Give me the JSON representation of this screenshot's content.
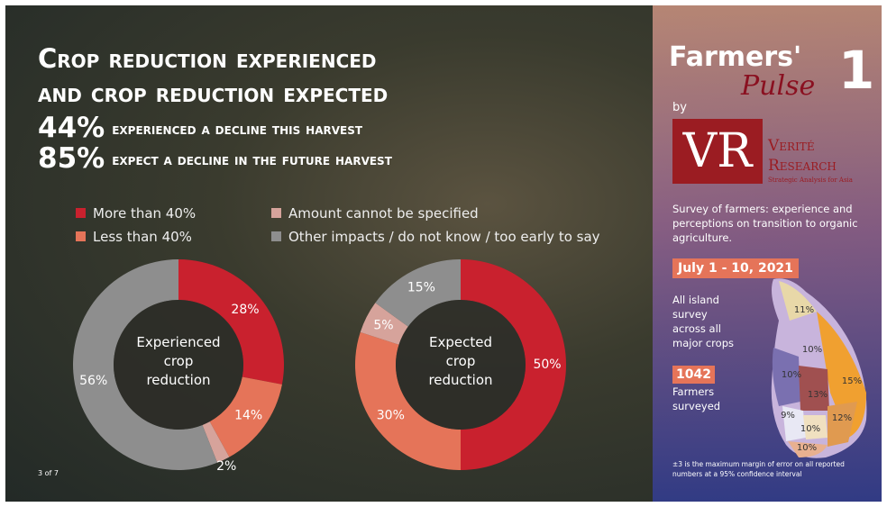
{
  "header": {
    "title_lines": [
      "Crop reduction experienced",
      "and crop reduction expected"
    ],
    "stats": [
      {
        "value": "44%",
        "text": "experienced a decline this harvest"
      },
      {
        "value": "85%",
        "text": "expect a decline in the future harvest"
      }
    ]
  },
  "chart_data": [
    {
      "type": "donut",
      "center_label": "Experienced crop reduction",
      "categories": [
        "More than 40%",
        "Less than 40%",
        "Amount cannot be specified",
        "Other impacts / do not know / too early to say"
      ],
      "colors": [
        "#c9212e",
        "#e57459",
        "#d6a39b",
        "#8e8e8e"
      ],
      "values": [
        28,
        14,
        2,
        56
      ],
      "value_labels": [
        "28%",
        "14%",
        "2%",
        "56%"
      ]
    },
    {
      "type": "donut",
      "center_label": "Expected crop reduction",
      "categories": [
        "More than 40%",
        "Less than 40%",
        "Amount cannot be specified",
        "Other impacts / do not know / too early to say"
      ],
      "colors": [
        "#c9212e",
        "#e57459",
        "#d6a39b",
        "#8e8e8e"
      ],
      "values": [
        50,
        30,
        5,
        15
      ],
      "value_labels": [
        "50%",
        "30%",
        "5%",
        "15%"
      ]
    }
  ],
  "footer": {
    "page": "3 of 7"
  },
  "sidebar": {
    "logo_word": "Farmers'",
    "logo_script": "Pulse",
    "logo_number": "1",
    "by": "by",
    "vr": "VR",
    "org_line1": "Verité",
    "org_line2": "Research",
    "org_tagline": "Strategic Analysis for Asia",
    "description": "Survey of farmers: experience and perceptions on transition to organic agriculture.",
    "dates": "July 1 - 10, 2021",
    "coverage": "All island survey across all major crops",
    "count": "1042",
    "count_label": "Farmers surveyed",
    "map_labels": [
      "11%",
      "10%",
      "10%",
      "13%",
      "15%",
      "9%",
      "10%",
      "12%",
      "10%"
    ],
    "note": "±3 is the maximum margin of error on all reported numbers at a 95% confidence interval"
  }
}
